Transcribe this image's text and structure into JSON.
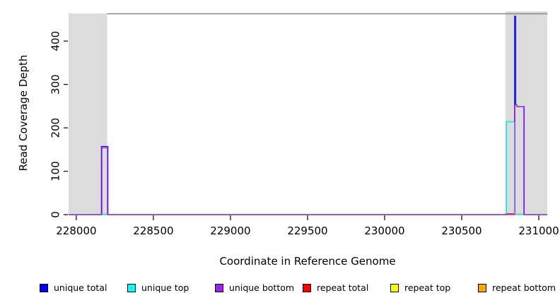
{
  "chart_data": {
    "type": "line",
    "title": "",
    "xlabel": "Coordinate in Reference Genome",
    "ylabel": "Read Coverage Depth",
    "xlim": [
      227950,
      231055
    ],
    "ylim": [
      0,
      467
    ],
    "x_ticks": [
      228000,
      228500,
      229000,
      229500,
      230000,
      230500,
      231000
    ],
    "y_ticks": [
      0,
      100,
      200,
      300,
      400
    ],
    "grid": false,
    "legend_position": "bottom",
    "plot_border_color": "#878787",
    "shade_color": "#DCDCDC",
    "shaded_regions": [
      {
        "x0": 227950,
        "x1": 228200
      },
      {
        "x0": 230783,
        "x1": 231055
      }
    ],
    "series": [
      {
        "name": "repeat total",
        "color": "#FF0000",
        "segments": [
          [
            230785,
            230843,
            2
          ]
        ]
      },
      {
        "name": "repeat top",
        "color": "#FFFF00",
        "segments": []
      },
      {
        "name": "repeat bottom",
        "color": "#FFA500",
        "segments": []
      },
      {
        "name": "unique total",
        "color": "#0000FF",
        "segments": [
          [
            228163,
            228205,
            157
          ],
          [
            230790,
            230843,
            214
          ],
          [
            230843,
            230850,
            457
          ],
          [
            230850,
            230858,
            253
          ],
          [
            230858,
            230905,
            249
          ]
        ]
      },
      {
        "name": "unique top",
        "color": "#00FFFF",
        "segments": [
          [
            230790,
            230843,
            214
          ]
        ]
      },
      {
        "name": "unique bottom",
        "color": "#A020F0",
        "segments": [
          [
            228166,
            228202,
            154
          ],
          [
            230845,
            230858,
            253
          ],
          [
            230858,
            230903,
            249
          ]
        ]
      }
    ],
    "overlap_marks": [
      {
        "x0": 228166,
        "x1": 228196,
        "value": 2,
        "color": "#7DE87D"
      },
      {
        "x0": 230843,
        "x1": 230900,
        "value": 2,
        "color": "#7DE87D"
      }
    ],
    "legend": [
      {
        "label": "unique total",
        "color": "#0000FF"
      },
      {
        "label": "unique top",
        "color": "#00FFFF"
      },
      {
        "label": "unique bottom",
        "color": "#A020F0"
      },
      {
        "label": "repeat total",
        "color": "#FF0000"
      },
      {
        "label": "repeat top",
        "color": "#FFFF00"
      },
      {
        "label": "repeat bottom",
        "color": "#FFA500"
      }
    ]
  }
}
